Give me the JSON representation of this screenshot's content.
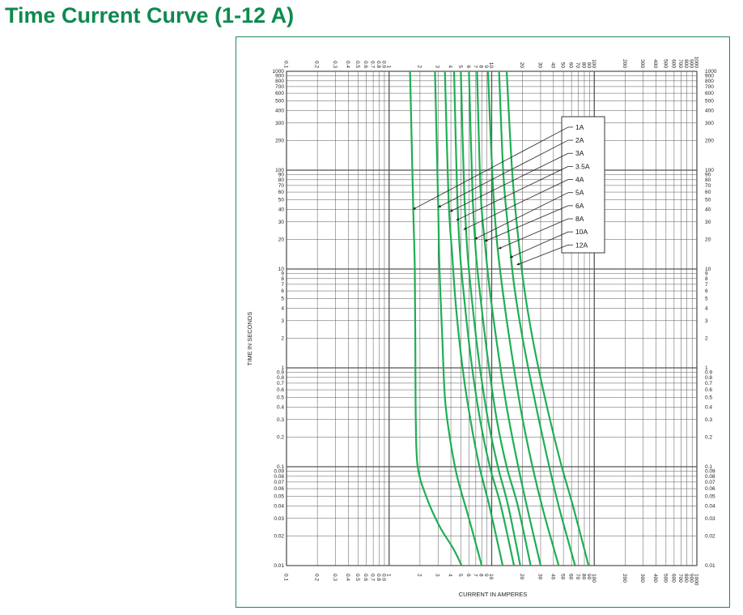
{
  "page": {
    "title": "Time Current Curve (1-12 A)"
  },
  "colors": {
    "title": "#0e8a4f",
    "curve": "#1fae55",
    "frame": "#1a8a55",
    "grid": "#555555"
  },
  "chart_data": {
    "type": "line",
    "title": "",
    "xlabel": "CURRENT IN AMPERES",
    "ylabel": "TIME IN SECONDS",
    "xscale": "log",
    "yscale": "log",
    "xlim": [
      0.1,
      1000
    ],
    "ylim": [
      0.01,
      1000
    ],
    "grid": true,
    "legend_position": "top-right",
    "x_tick_labels": [
      "0.1",
      "0.2",
      "0.3",
      "0.4",
      "0.5",
      "0.6",
      "0.7",
      "0.8",
      "0.9",
      "1",
      "2",
      "3",
      "4",
      "5",
      "6",
      "7",
      "8",
      "9",
      "10",
      "20",
      "30",
      "40",
      "50",
      "60",
      "70",
      "80",
      "90",
      "100",
      "200",
      "300",
      "400",
      "500",
      "600",
      "700",
      "800",
      "900",
      "1000"
    ],
    "y_tick_labels": [
      "0.01",
      "0.02",
      "0.03",
      "0.04",
      "0.05",
      "0.06",
      "0.07",
      "0.08",
      "0.09",
      "0.1",
      "0.2",
      "0.3",
      "0.4",
      "0.5",
      "0.6",
      "0.7",
      "0.8",
      "0.9",
      "1",
      "2",
      "3",
      "4",
      "5",
      "6",
      "7",
      "8",
      "9",
      "10",
      "20",
      "30",
      "40",
      "50",
      "60",
      "70",
      "80",
      "90",
      "100",
      "200",
      "300",
      "400",
      "500",
      "600",
      "700",
      "800",
      "900",
      "1000"
    ],
    "series": [
      {
        "name": "1A",
        "points": [
          [
            1.6,
            1000
          ],
          [
            1.72,
            40
          ],
          [
            1.78,
            10
          ],
          [
            1.8,
            2
          ],
          [
            1.82,
            0.3
          ],
          [
            1.9,
            0.1
          ],
          [
            2.3,
            0.05
          ],
          [
            3.1,
            0.025
          ],
          [
            4.2,
            0.015
          ],
          [
            5.1,
            0.01
          ]
        ],
        "arrow_at": [
          1.7,
          40
        ]
      },
      {
        "name": "2A",
        "points": [
          [
            2.8,
            1000
          ],
          [
            3.0,
            50
          ],
          [
            3.1,
            10
          ],
          [
            3.3,
            2
          ],
          [
            3.5,
            0.5
          ],
          [
            3.9,
            0.2
          ],
          [
            4.6,
            0.08
          ],
          [
            6.0,
            0.03
          ],
          [
            8.0,
            0.01
          ]
        ],
        "arrow_at": [
          3.0,
          42
        ]
      },
      {
        "name": "3A",
        "points": [
          [
            3.5,
            1000
          ],
          [
            3.8,
            50
          ],
          [
            4.1,
            15
          ],
          [
            4.5,
            4
          ],
          [
            5.2,
            1
          ],
          [
            6.2,
            0.3
          ],
          [
            7.6,
            0.1
          ],
          [
            9.5,
            0.04
          ],
          [
            12.8,
            0.01
          ]
        ],
        "arrow_at": [
          3.9,
          38
        ]
      },
      {
        "name": "3.5A",
        "points": [
          [
            4.3,
            1000
          ],
          [
            4.6,
            60
          ],
          [
            4.9,
            15
          ],
          [
            5.4,
            5
          ],
          [
            6.3,
            1.2
          ],
          [
            7.7,
            0.3
          ],
          [
            9.6,
            0.1
          ],
          [
            12.3,
            0.04
          ],
          [
            16.5,
            0.01
          ]
        ],
        "arrow_at": [
          4.5,
          31
        ]
      },
      {
        "name": "4A",
        "points": [
          [
            5.0,
            1000
          ],
          [
            5.4,
            60
          ],
          [
            5.8,
            15
          ],
          [
            6.4,
            5
          ],
          [
            7.5,
            1.2
          ],
          [
            9.2,
            0.3
          ],
          [
            11.5,
            0.1
          ],
          [
            14.5,
            0.04
          ],
          [
            19.0,
            0.01
          ]
        ],
        "arrow_at": [
          5.3,
          25
        ]
      },
      {
        "name": "5A",
        "points": [
          [
            6.0,
            1000
          ],
          [
            6.5,
            60
          ],
          [
            7.0,
            15
          ],
          [
            7.8,
            5
          ],
          [
            9.2,
            1.2
          ],
          [
            11.2,
            0.3
          ],
          [
            14.0,
            0.1
          ],
          [
            18.0,
            0.04
          ],
          [
            24.0,
            0.01
          ]
        ],
        "arrow_at": [
          6.8,
          20
        ]
      },
      {
        "name": "6A",
        "points": [
          [
            7.2,
            1000
          ],
          [
            7.8,
            60
          ],
          [
            8.6,
            18
          ],
          [
            9.6,
            6
          ],
          [
            11.5,
            1.5
          ],
          [
            14.0,
            0.4
          ],
          [
            17.5,
            0.12
          ],
          [
            22.0,
            0.04
          ],
          [
            30.0,
            0.01
          ]
        ],
        "arrow_at": [
          8.5,
          19
        ]
      },
      {
        "name": "8A",
        "points": [
          [
            9.2,
            1000
          ],
          [
            10.2,
            80
          ],
          [
            11.2,
            20
          ],
          [
            12.8,
            6
          ],
          [
            15.5,
            1.5
          ],
          [
            19.5,
            0.35
          ],
          [
            25.0,
            0.1
          ],
          [
            32.0,
            0.035
          ],
          [
            45.0,
            0.01
          ]
        ],
        "arrow_at": [
          11.6,
          16
        ]
      },
      {
        "name": "10A",
        "points": [
          [
            11.8,
            1000
          ],
          [
            13.0,
            90
          ],
          [
            14.5,
            25
          ],
          [
            16.5,
            7
          ],
          [
            20.0,
            2
          ],
          [
            26.0,
            0.5
          ],
          [
            35.0,
            0.12
          ],
          [
            45.0,
            0.04
          ],
          [
            65.0,
            0.01
          ]
        ],
        "arrow_at": [
          15.0,
          13
        ]
      },
      {
        "name": "12A",
        "points": [
          [
            14.0,
            1000
          ],
          [
            15.8,
            100
          ],
          [
            17.8,
            25
          ],
          [
            20.5,
            7
          ],
          [
            25.0,
            2
          ],
          [
            33.0,
            0.5
          ],
          [
            46.0,
            0.12
          ],
          [
            62.0,
            0.04
          ],
          [
            88.0,
            0.01
          ]
        ],
        "arrow_at": [
          17.5,
          11
        ]
      }
    ]
  }
}
